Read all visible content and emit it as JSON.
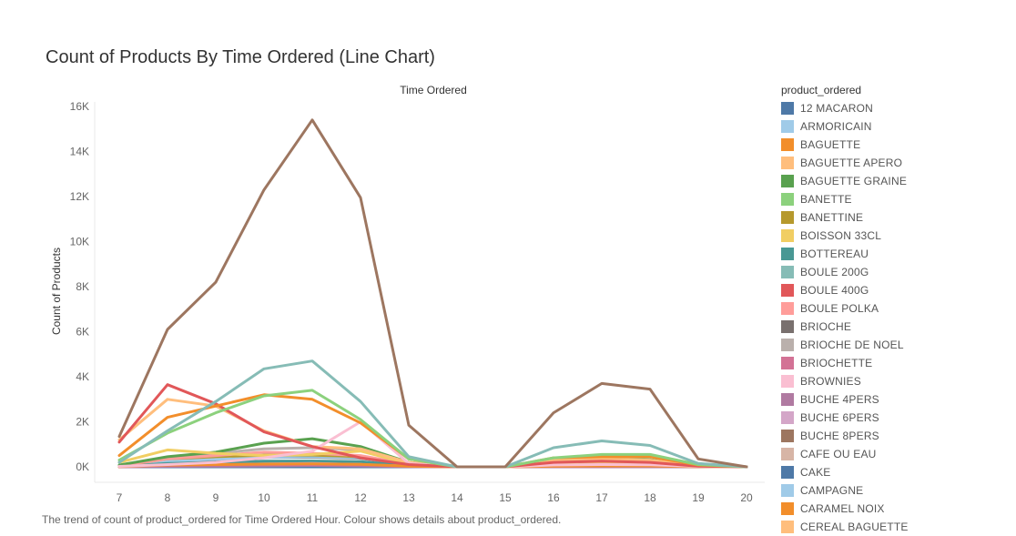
{
  "title": "Count of Products By Time Ordered (Line Chart)",
  "caption": "The trend of count of product_ordered for Time Ordered Hour.  Colour shows details about product_ordered.",
  "legend": {
    "title": "product_ordered",
    "items": [
      {
        "label": "12 MACARON",
        "color": "#4e79a7"
      },
      {
        "label": "ARMORICAIN",
        "color": "#a0cbe8"
      },
      {
        "label": "BAGUETTE",
        "color": "#f28e2b"
      },
      {
        "label": "BAGUETTE APERO",
        "color": "#ffbe7d"
      },
      {
        "label": "BAGUETTE GRAINE",
        "color": "#59a14f"
      },
      {
        "label": "BANETTE",
        "color": "#8cd17d"
      },
      {
        "label": "BANETTINE",
        "color": "#b6992d"
      },
      {
        "label": "BOISSON 33CL",
        "color": "#f1ce63"
      },
      {
        "label": "BOTTEREAU",
        "color": "#499894"
      },
      {
        "label": "BOULE 200G",
        "color": "#86bcb6"
      },
      {
        "label": "BOULE 400G",
        "color": "#e15759"
      },
      {
        "label": "BOULE POLKA",
        "color": "#ff9d9a"
      },
      {
        "label": "BRIOCHE",
        "color": "#79706e"
      },
      {
        "label": "BRIOCHE DE NOEL",
        "color": "#bab0ac"
      },
      {
        "label": "BRIOCHETTE",
        "color": "#d37295"
      },
      {
        "label": "BROWNIES",
        "color": "#fabfd2"
      },
      {
        "label": "BUCHE 4PERS",
        "color": "#b07aa1"
      },
      {
        "label": "BUCHE 6PERS",
        "color": "#d4a6c8"
      },
      {
        "label": "BUCHE 8PERS",
        "color": "#9d7660"
      },
      {
        "label": "CAFE OU EAU",
        "color": "#d7b5a6"
      },
      {
        "label": "CAKE",
        "color": "#4e79a7"
      },
      {
        "label": "CAMPAGNE",
        "color": "#a0cbe8"
      },
      {
        "label": "CARAMEL NOIX",
        "color": "#f28e2b"
      },
      {
        "label": "CEREAL BAGUETTE",
        "color": "#ffbe7d"
      }
    ]
  },
  "chart_data": {
    "type": "line",
    "title": "Count of Products By Time Ordered (Line Chart)",
    "xlabel": "Time Ordered",
    "ylabel": "Count of Products",
    "x": [
      7,
      8,
      9,
      10,
      11,
      12,
      13,
      14,
      15,
      16,
      17,
      18,
      19,
      20
    ],
    "x_ticks": [
      "7",
      "8",
      "9",
      "10",
      "11",
      "12",
      "13",
      "14",
      "15",
      "16",
      "17",
      "18",
      "19",
      "20"
    ],
    "y_ticks": [
      "0K",
      "2K",
      "4K",
      "6K",
      "8K",
      "10K",
      "12K",
      "14K",
      "16K"
    ],
    "ylim": [
      0,
      16000
    ],
    "grid": false,
    "legend_position": "right",
    "series": [
      {
        "name": "BRIOCHE",
        "color": "#79706e",
        "values": [
          30,
          200,
          300,
          420,
          430,
          380,
          100,
          0,
          0,
          60,
          100,
          90,
          20,
          0
        ]
      },
      {
        "name": "BRIOCHE DE NOEL",
        "color": "#bab0ac",
        "values": [
          50,
          400,
          600,
          800,
          850,
          750,
          150,
          0,
          0,
          120,
          160,
          140,
          40,
          0
        ]
      },
      {
        "name": "12 MACARON",
        "color": "#4e79a7",
        "values": [
          0,
          0,
          0,
          0,
          0,
          0,
          0,
          0,
          0,
          0,
          0,
          0,
          0,
          0
        ]
      },
      {
        "name": "CAKE",
        "color": "#4e79a7",
        "values": [
          0,
          0,
          0,
          0,
          0,
          0,
          0,
          0,
          0,
          0,
          0,
          0,
          0,
          0
        ]
      },
      {
        "name": "CAFE OU EAU",
        "color": "#d7b5a6",
        "values": [
          20,
          100,
          130,
          160,
          180,
          170,
          40,
          0,
          0,
          50,
          70,
          60,
          10,
          0
        ]
      },
      {
        "name": "CAMPAGNE",
        "color": "#a0cbe8",
        "values": [
          60,
          250,
          330,
          420,
          450,
          400,
          80,
          0,
          0,
          90,
          130,
          110,
          30,
          0
        ]
      },
      {
        "name": "ARMORICAIN",
        "color": "#a0cbe8",
        "values": [
          10,
          50,
          60,
          80,
          90,
          80,
          20,
          0,
          0,
          30,
          40,
          40,
          10,
          0
        ]
      },
      {
        "name": "BOTTEREAU",
        "color": "#499894",
        "values": [
          20,
          150,
          200,
          250,
          260,
          230,
          50,
          0,
          0,
          60,
          80,
          70,
          20,
          0
        ]
      },
      {
        "name": "BANETTINE",
        "color": "#b6992d",
        "values": [
          40,
          350,
          450,
          520,
          520,
          450,
          100,
          0,
          0,
          100,
          150,
          140,
          30,
          0
        ]
      },
      {
        "name": "BUCHE 6PERS",
        "color": "#d4a6c8",
        "values": [
          0,
          40,
          80,
          120,
          150,
          100,
          30,
          0,
          0,
          0,
          0,
          0,
          0,
          0
        ]
      },
      {
        "name": "BUCHE 4PERS",
        "color": "#b07aa1",
        "values": [
          0,
          20,
          30,
          40,
          60,
          40,
          10,
          0,
          0,
          0,
          0,
          0,
          0,
          0
        ]
      },
      {
        "name": "BRIOCHETTE",
        "color": "#d37295",
        "values": [
          10,
          60,
          80,
          100,
          100,
          90,
          20,
          0,
          0,
          20,
          30,
          30,
          10,
          0
        ]
      },
      {
        "name": "CARAMEL NOIX",
        "color": "#f28e2b",
        "values": [
          10,
          80,
          100,
          120,
          130,
          110,
          30,
          0,
          0,
          30,
          40,
          40,
          10,
          0
        ]
      },
      {
        "name": "BOULE POLKA",
        "color": "#ff9d9a",
        "values": [
          50,
          350,
          500,
          650,
          600,
          500,
          120,
          0,
          0,
          150,
          220,
          200,
          40,
          0
        ]
      },
      {
        "name": "BAGUETTE GRAINE",
        "color": "#59a14f",
        "values": [
          80,
          450,
          650,
          1050,
          1250,
          900,
          200,
          0,
          0,
          250,
          350,
          320,
          60,
          0
        ]
      },
      {
        "name": "BOISSON 33CL",
        "color": "#f1ce63",
        "values": [
          200,
          750,
          600,
          500,
          550,
          700,
          150,
          0,
          0,
          100,
          120,
          110,
          20,
          0
        ]
      },
      {
        "name": "CEREAL BAGUETTE",
        "color": "#ffbe7d",
        "values": [
          1200,
          3000,
          2700,
          1600,
          900,
          800,
          200,
          0,
          0,
          300,
          350,
          300,
          60,
          0
        ]
      },
      {
        "name": "BROWNIES",
        "color": "#fabfd2",
        "values": [
          20,
          100,
          200,
          400,
          700,
          2000,
          150,
          0,
          0,
          80,
          100,
          90,
          20,
          0
        ]
      },
      {
        "name": "BOULE 400G",
        "color": "#e15759",
        "values": [
          1100,
          3650,
          2800,
          1550,
          900,
          400,
          100,
          0,
          0,
          200,
          250,
          200,
          30,
          0
        ]
      },
      {
        "name": "BAGUETTE",
        "color": "#f28e2b",
        "values": [
          500,
          2200,
          2700,
          3200,
          3000,
          1950,
          350,
          0,
          0,
          400,
          450,
          450,
          80,
          0
        ]
      },
      {
        "name": "BANETTE",
        "color": "#8cd17d",
        "values": [
          300,
          1500,
          2400,
          3150,
          3400,
          2100,
          350,
          0,
          0,
          400,
          550,
          550,
          100,
          0
        ]
      },
      {
        "name": "BOULE 200G",
        "color": "#86bcb6",
        "values": [
          200,
          1600,
          2900,
          4350,
          4700,
          2900,
          450,
          0,
          0,
          850,
          1150,
          950,
          150,
          0
        ]
      },
      {
        "name": "BUCHE 8PERS",
        "color": "#9d7660",
        "values": [
          1350,
          6100,
          8200,
          12300,
          15400,
          11950,
          1850,
          0,
          0,
          2400,
          3700,
          3450,
          350,
          0
        ]
      }
    ]
  }
}
